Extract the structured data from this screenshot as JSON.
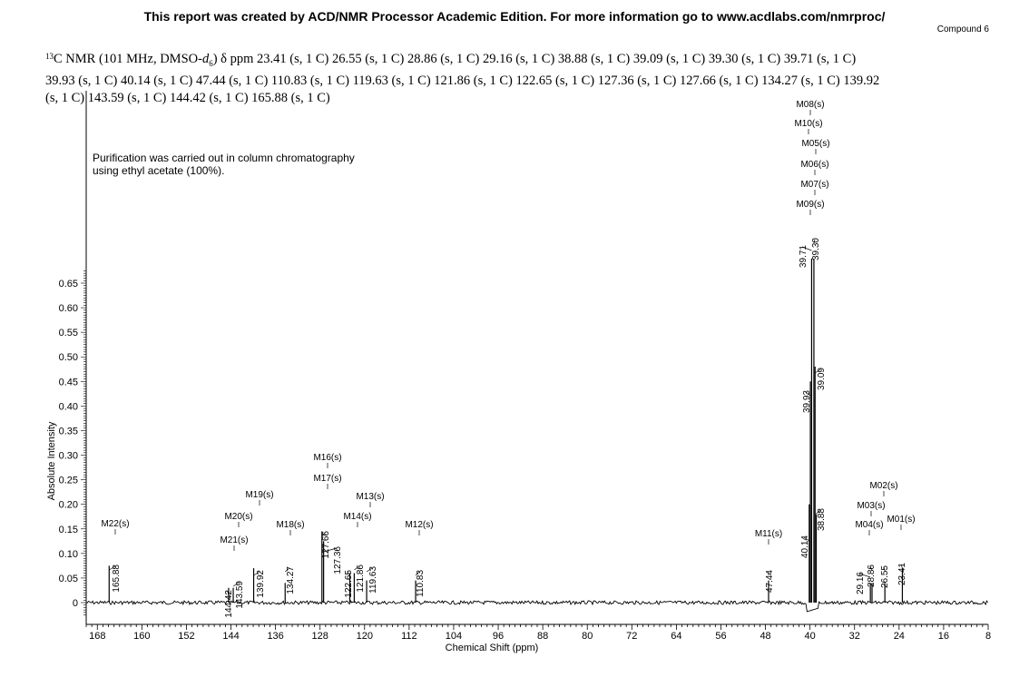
{
  "header": {
    "report_line": "This report was created by ACD/NMR Processor Academic Edition. For more information go to www.acdlabs.com/nmrproc/",
    "compound": "Compound 6"
  },
  "description": {
    "nucleus_mass": "13",
    "nucleus_rest": "C NMR (101 MHz, DMSO-",
    "solvent_italic": "d",
    "solvent_sub": "6",
    "after_solvent": ") δ ppm",
    "lines": [
      "23.41 (s, 1 C) 26.55 (s, 1 C) 28.86 (s, 1 C) 29.16 (s, 1 C) 38.88 (s, 1 C) 39.09 (s, 1 C) 39.30 (s, 1 C) 39.71 (s, 1 C)",
      "39.93 (s, 1 C) 40.14 (s, 1 C) 47.44 (s, 1 C) 110.83 (s, 1 C) 119.63 (s, 1 C) 121.86 (s, 1 C) 122.65 (s, 1 C) 127.36 (s, 1 C) 127.66 (s, 1 C) 134.27 (s, 1 C) 139.92",
      "(s, 1 C) 143.59 (s, 1 C) 144.42 (s, 1 C) 165.88 (s, 1 C)"
    ]
  },
  "note": {
    "line1": "Purification was carried out in column chromatography",
    "line2": "using ethyl acetate (100%)."
  },
  "chart_data": {
    "type": "line",
    "xlabel": "Chemical Shift (ppm)",
    "ylabel": "Absolute Intensity",
    "xlim": [
      170,
      8
    ],
    "ylim": [
      -0.03,
      0.7
    ],
    "x_reversed": true,
    "xticks": [
      168,
      160,
      152,
      144,
      136,
      128,
      120,
      112,
      104,
      96,
      88,
      80,
      72,
      64,
      56,
      48,
      40,
      32,
      24,
      16,
      8
    ],
    "yticks": [
      0,
      0.05,
      0.1,
      0.15,
      0.2,
      0.25,
      0.3,
      0.35,
      0.4,
      0.45,
      0.5,
      0.55,
      0.6,
      0.65
    ],
    "ytick_labels": [
      "0",
      "0.05",
      "0.10",
      "0.15",
      "0.20",
      "0.25",
      "0.30",
      "0.35",
      "0.40",
      "0.45",
      "0.50",
      "0.55",
      "0.60",
      "0.65"
    ],
    "peaks": [
      {
        "ppm": 165.88,
        "height": 0.075,
        "label": "165.88"
      },
      {
        "ppm": 144.42,
        "height": 0.03,
        "label": "144.42"
      },
      {
        "ppm": 143.59,
        "height": 0.03,
        "label": "143.59"
      },
      {
        "ppm": 139.92,
        "height": 0.07,
        "label": "139.92"
      },
      {
        "ppm": 134.27,
        "height": 0.04,
        "label": "134.27"
      },
      {
        "ppm": 127.66,
        "height": 0.145,
        "label": "127.66"
      },
      {
        "ppm": 127.36,
        "height": 0.125,
        "label": "127.36"
      },
      {
        "ppm": 122.65,
        "height": 0.06,
        "label": "122.65"
      },
      {
        "ppm": 121.86,
        "height": 0.06,
        "label": "121.86"
      },
      {
        "ppm": 119.63,
        "height": 0.045,
        "label": "119.63"
      },
      {
        "ppm": 110.83,
        "height": 0.045,
        "label": "110.83"
      },
      {
        "ppm": 47.44,
        "height": 0.045,
        "label": "47.44"
      },
      {
        "ppm": 40.14,
        "height": 0.2,
        "label": "40.14"
      },
      {
        "ppm": 39.93,
        "height": 0.45,
        "label": "39.93"
      },
      {
        "ppm": 39.71,
        "height": 0.7,
        "label": "39.71"
      },
      {
        "ppm": 39.3,
        "height": 0.7,
        "label": "39.30"
      },
      {
        "ppm": 39.09,
        "height": 0.48,
        "label": "39.09"
      },
      {
        "ppm": 38.88,
        "height": 0.18,
        "label": "38.88"
      },
      {
        "ppm": 29.16,
        "height": 0.04,
        "label": "29.16"
      },
      {
        "ppm": 28.86,
        "height": 0.04,
        "label": "28.86"
      },
      {
        "ppm": 26.55,
        "height": 0.04,
        "label": "26.55"
      },
      {
        "ppm": 23.41,
        "height": 0.07,
        "label": "23.41"
      }
    ],
    "multiplet_labels": [
      {
        "ppm": 165.88,
        "text": "M22(s)"
      },
      {
        "ppm": 144.42,
        "text": "M21(s)"
      },
      {
        "ppm": 143.59,
        "text": "M20(s)"
      },
      {
        "ppm": 139.92,
        "text": "M19(s)"
      },
      {
        "ppm": 134.27,
        "text": "M18(s)"
      },
      {
        "ppm": 127.66,
        "text": "M16(s)"
      },
      {
        "ppm": 127.36,
        "text": "M17(s)"
      },
      {
        "ppm": 122.65,
        "text": "M14(s)"
      },
      {
        "ppm": 121.86,
        "text": "M13(s)"
      },
      {
        "ppm": 110.83,
        "text": "M12(s)"
      },
      {
        "ppm": 47.44,
        "text": "M11(s)"
      },
      {
        "ppm": 40.14,
        "text": "M08(s)"
      },
      {
        "ppm": 39.93,
        "text": "M10(s)"
      },
      {
        "ppm": 39.71,
        "text": "M05(s)"
      },
      {
        "ppm": 39.3,
        "text": "M06(s)"
      },
      {
        "ppm": 39.09,
        "text": "M07(s)"
      },
      {
        "ppm": 38.88,
        "text": "M09(s)"
      },
      {
        "ppm": 29.16,
        "text": "M02(s)"
      },
      {
        "ppm": 28.86,
        "text": "M03(s)"
      },
      {
        "ppm": 26.55,
        "text": "M04(s)"
      },
      {
        "ppm": 23.41,
        "text": "M01(s)"
      }
    ]
  }
}
